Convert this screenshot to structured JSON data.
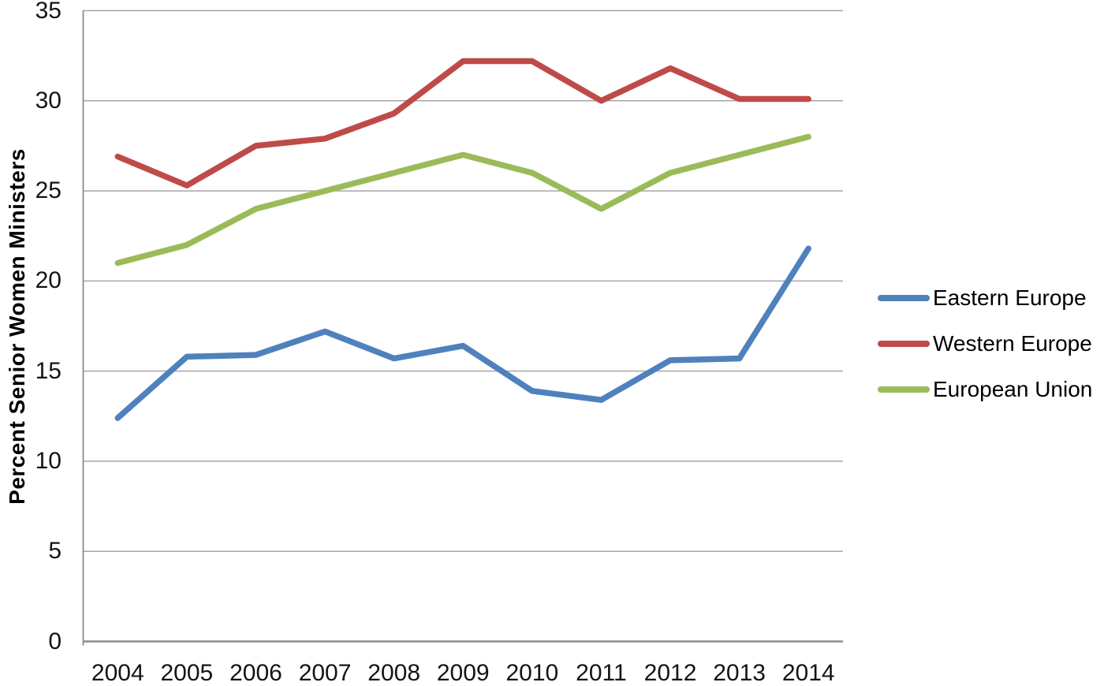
{
  "chart_data": {
    "type": "line",
    "title": "",
    "ylabel": "Percent Senior Women Ministers",
    "xlabel": "",
    "ylim": [
      0,
      35
    ],
    "yticks": [
      0,
      5,
      10,
      15,
      20,
      25,
      30,
      35
    ],
    "grid": "horizontal",
    "legend_position": "right",
    "categories": [
      "2004",
      "2005",
      "2006",
      "2007",
      "2008",
      "2009",
      "2010",
      "2011",
      "2012",
      "2013",
      "2014"
    ],
    "series": [
      {
        "name": "Eastern Europe",
        "color": "#4F81BD",
        "values": [
          12.4,
          15.8,
          15.9,
          17.2,
          15.7,
          16.4,
          13.9,
          13.4,
          15.6,
          15.7,
          21.8
        ]
      },
      {
        "name": "Western Europe",
        "color": "#BE4B48",
        "values": [
          26.9,
          25.3,
          27.5,
          27.9,
          29.3,
          32.2,
          32.2,
          30.0,
          31.8,
          30.1,
          30.1
        ]
      },
      {
        "name": "European Union",
        "color": "#9BBB59",
        "values": [
          21.0,
          22.0,
          24.0,
          25.0,
          26.0,
          27.0,
          26.0,
          24.0,
          26.0,
          27.0,
          28.0
        ]
      }
    ]
  },
  "colors": {
    "gridline": "#A6A6A6",
    "axis": "#8C8C8C",
    "text": "#000000",
    "background": "#FFFFFF"
  }
}
